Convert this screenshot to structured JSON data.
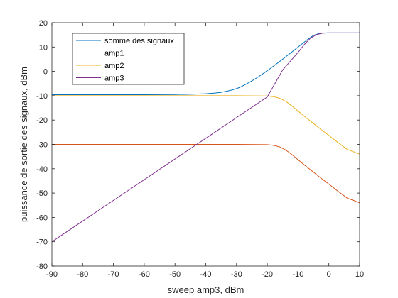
{
  "chart_data": {
    "type": "line",
    "xlabel": "sweep amp3, dBm",
    "ylabel": "puissance de sortie des signaux, dBm",
    "xlim": [
      -90,
      10
    ],
    "ylim": [
      -80,
      20
    ],
    "xticks": [
      -90,
      -80,
      -70,
      -60,
      -50,
      -40,
      -30,
      -20,
      -10,
      0,
      10
    ],
    "yticks": [
      -80,
      -70,
      -60,
      -50,
      -40,
      -30,
      -20,
      -10,
      0,
      10,
      20
    ],
    "grid": false,
    "legend_position": "top-left",
    "series": [
      {
        "name": "somme des signaux",
        "color": "#0072bd",
        "x": [
          -90,
          -80,
          -70,
          -60,
          -50,
          -45,
          -40,
          -37,
          -35,
          -33,
          -31,
          -29,
          -27,
          -25,
          -23,
          -21,
          -19,
          -17,
          -15,
          -13,
          -11,
          -9,
          -7,
          -5,
          -3,
          -1,
          0,
          5,
          10
        ],
        "y": [
          -9.6,
          -9.6,
          -9.6,
          -9.6,
          -9.5,
          -9.4,
          -9.2,
          -8.9,
          -8.6,
          -8.1,
          -7.5,
          -6.6,
          -5.3,
          -3.9,
          -2.3,
          -0.6,
          1.2,
          3.1,
          5.0,
          7.0,
          9.0,
          11.0,
          13.0,
          14.8,
          15.6,
          15.8,
          15.8,
          15.8,
          15.8
        ]
      },
      {
        "name": "amp1",
        "color": "#d95319",
        "x": [
          -90,
          -80,
          -70,
          -60,
          -50,
          -40,
          -30,
          -20,
          -18,
          -16,
          -14,
          -12,
          -10,
          -8,
          -6,
          -4,
          -2,
          0,
          2,
          4,
          6,
          8,
          10
        ],
        "y": [
          -30,
          -30,
          -30,
          -30,
          -30,
          -30,
          -30,
          -30.1,
          -30.4,
          -31.0,
          -32.3,
          -34.2,
          -36.3,
          -38.4,
          -40.4,
          -42.4,
          -44.4,
          -46.3,
          -48.3,
          -50.2,
          -52.1,
          -53.0,
          -54.0
        ]
      },
      {
        "name": "amp2",
        "color": "#edb120",
        "x": [
          -90,
          -80,
          -70,
          -60,
          -50,
          -40,
          -30,
          -20,
          -18,
          -16,
          -14,
          -12,
          -10,
          -8,
          -6,
          -4,
          -2,
          0,
          2,
          4,
          6,
          8,
          10
        ],
        "y": [
          -10,
          -10,
          -10,
          -10,
          -10,
          -10,
          -10,
          -10.1,
          -10.4,
          -11.0,
          -12.3,
          -14.2,
          -16.3,
          -18.4,
          -20.4,
          -22.4,
          -24.4,
          -26.3,
          -28.3,
          -30.2,
          -32.1,
          -33.0,
          -34.0
        ]
      },
      {
        "name": "amp3",
        "color": "#7e2f8e",
        "x": [
          -90,
          -80,
          -70,
          -60,
          -50,
          -40,
          -30,
          -20,
          -15,
          -10,
          -8,
          -6,
          -4,
          -2,
          0,
          2,
          5,
          10
        ],
        "y": [
          -70,
          -61.5,
          -53.0,
          -44.5,
          -36.0,
          -27.5,
          -19.0,
          -10.5,
          0.6,
          7.8,
          11.0,
          13.6,
          15.1,
          15.7,
          15.8,
          15.8,
          15.8,
          15.8
        ]
      }
    ]
  }
}
